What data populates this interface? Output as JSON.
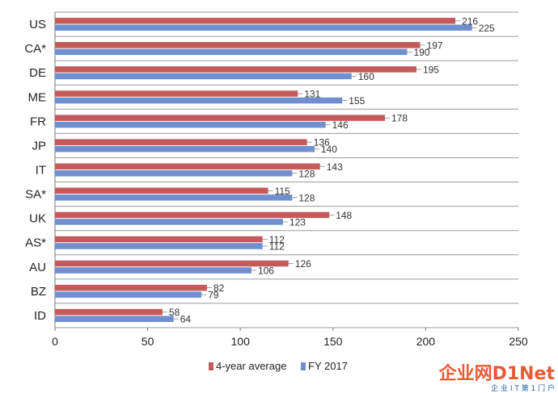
{
  "chart_data": {
    "type": "bar",
    "orientation": "horizontal",
    "categories": [
      "US",
      "CA*",
      "DE",
      "ME",
      "FR",
      "JP",
      "IT",
      "SA*",
      "UK",
      "AS*",
      "AU",
      "BZ",
      "ID"
    ],
    "series": [
      {
        "name": "4-year average",
        "color": "#c55a5a",
        "values": [
          216,
          197,
          195,
          131,
          178,
          136,
          143,
          115,
          148,
          112,
          126,
          82,
          58
        ]
      },
      {
        "name": "FY 2017",
        "color": "#6f8fcf",
        "values": [
          225,
          190,
          160,
          155,
          146,
          140,
          128,
          128,
          123,
          112,
          106,
          79,
          64
        ]
      }
    ],
    "xlim": [
      0,
      250
    ],
    "xticks": [
      0,
      50,
      100,
      150,
      200,
      250
    ],
    "legend_position": "bottom",
    "grid": "horizontal separators between categories"
  },
  "watermark": {
    "text": "企业网D1Net",
    "subtext": "企 业 I T 第 1 门 户",
    "color": "#e8512a"
  }
}
